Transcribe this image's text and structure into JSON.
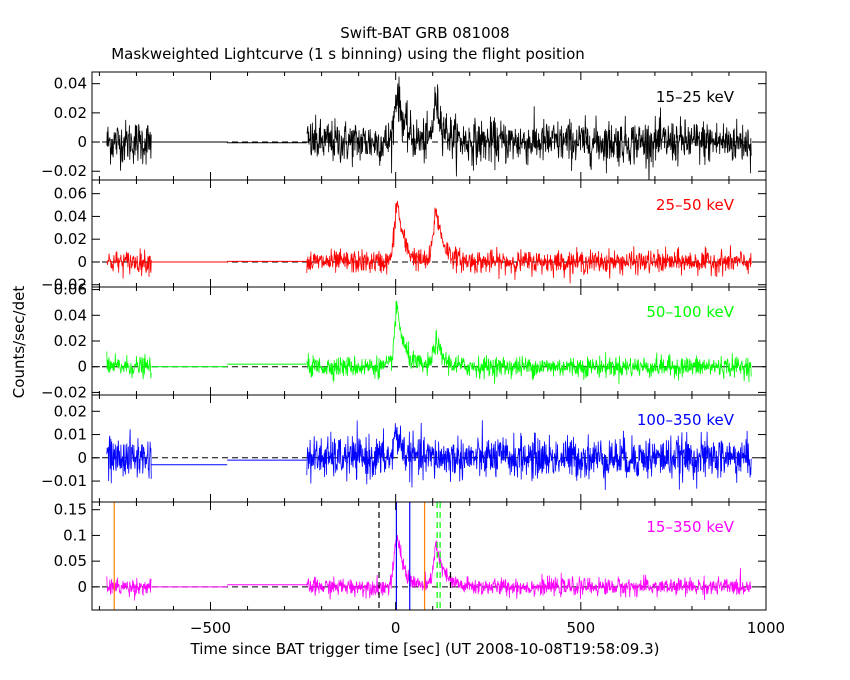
{
  "chart_data": {
    "type": "line",
    "title": "Swift-BAT GRB 081008",
    "subtitle": "Maskweighted Lightcurve (1 s binning) using the flight position",
    "xlabel": "Time since BAT trigger time [sec] (UT 2008-10-08T19:58:09.3)",
    "ylabel": "Counts/sec/det",
    "xlim": [
      -820,
      1000
    ],
    "x_ticks": [
      -500,
      0,
      500,
      1000
    ],
    "x_tick_labels": [
      "−500",
      "0",
      "500",
      "1000"
    ],
    "data_segments": [
      [
        -780,
        -660
      ],
      [
        -240,
        960
      ]
    ],
    "gap_segments": [
      [
        -660,
        -455
      ],
      [
        -455,
        -240
      ]
    ],
    "panels": [
      {
        "name": "15–25 keV",
        "color": "#000000",
        "ylim": [
          -0.026,
          0.048
        ],
        "y_ticks": [
          -0.02,
          0,
          0.02,
          0.04
        ],
        "y_tick_labels": [
          "−0.02",
          "0",
          "0.02",
          "0.04"
        ],
        "noise_sigma": 0.0075,
        "gap_levels": [
          0.0,
          -0.0005
        ],
        "peaks": [
          {
            "t": 5,
            "amp": 0.035,
            "rise": 8,
            "decay": 18
          },
          {
            "t": 110,
            "amp": 0.028,
            "rise": 8,
            "decay": 20
          }
        ]
      },
      {
        "name": "25–50 keV",
        "color": "#ff0000",
        "ylim": [
          -0.022,
          0.072
        ],
        "y_ticks": [
          -0.02,
          0,
          0.02,
          0.04,
          0.06
        ],
        "y_tick_labels": [
          "−0.02",
          "0",
          "0.02",
          "0.04",
          "0.06"
        ],
        "noise_sigma": 0.005,
        "gap_levels": [
          0.0,
          0.0005
        ],
        "peaks": [
          {
            "t": 5,
            "amp": 0.052,
            "rise": 8,
            "decay": 18
          },
          {
            "t": 110,
            "amp": 0.045,
            "rise": 8,
            "decay": 20
          }
        ]
      },
      {
        "name": "50–100 keV",
        "color": "#00ff00",
        "ylim": [
          -0.022,
          0.062
        ],
        "y_ticks": [
          -0.02,
          0,
          0.02,
          0.04,
          0.06
        ],
        "y_tick_labels": [
          "−0.02",
          "0",
          "0.02",
          "0.04",
          "0.06"
        ],
        "noise_sigma": 0.004,
        "gap_levels": [
          0.0,
          0.002
        ],
        "peaks": [
          {
            "t": 5,
            "amp": 0.045,
            "rise": 8,
            "decay": 18
          },
          {
            "t": 110,
            "amp": 0.02,
            "rise": 8,
            "decay": 18
          }
        ]
      },
      {
        "name": "100–350 keV",
        "color": "#0000ff",
        "ylim": [
          -0.019,
          0.027
        ],
        "y_ticks": [
          -0.01,
          0,
          0.01,
          0.02
        ],
        "y_tick_labels": [
          "−0.01",
          "0",
          "0.01",
          "0.02"
        ],
        "noise_sigma": 0.0045,
        "gap_levels": [
          -0.003,
          -0.001
        ],
        "peaks": [
          {
            "t": 3,
            "amp": 0.012,
            "rise": 6,
            "decay": 14
          }
        ]
      },
      {
        "name": "15–350 keV",
        "color": "#ff00ff",
        "ylim": [
          -0.045,
          0.165
        ],
        "y_ticks": [
          0,
          0.05,
          0.1,
          0.15
        ],
        "y_tick_labels": [
          "0",
          "0.05",
          "0.1",
          "0.15"
        ],
        "noise_sigma": 0.0085,
        "gap_levels": [
          0.0,
          0.004
        ],
        "peaks": [
          {
            "t": 5,
            "amp": 0.1,
            "rise": 8,
            "decay": 18
          },
          {
            "t": 110,
            "amp": 0.08,
            "rise": 8,
            "decay": 20
          }
        ],
        "markers": [
          {
            "t": -760,
            "color": "#ff8000",
            "style": "solid"
          },
          {
            "t": 78,
            "color": "#ff8000",
            "style": "solid"
          },
          {
            "t": 2,
            "color": "#0000ff",
            "style": "solid"
          },
          {
            "t": 38,
            "color": "#0000ff",
            "style": "solid"
          },
          {
            "t": -45,
            "color": "#000000",
            "style": "dashed"
          },
          {
            "t": 148,
            "color": "#000000",
            "style": "dashed"
          },
          {
            "t": 112,
            "color": "#00ff00",
            "style": "dashed"
          },
          {
            "t": 120,
            "color": "#00ff00",
            "style": "dashed"
          }
        ]
      }
    ]
  }
}
